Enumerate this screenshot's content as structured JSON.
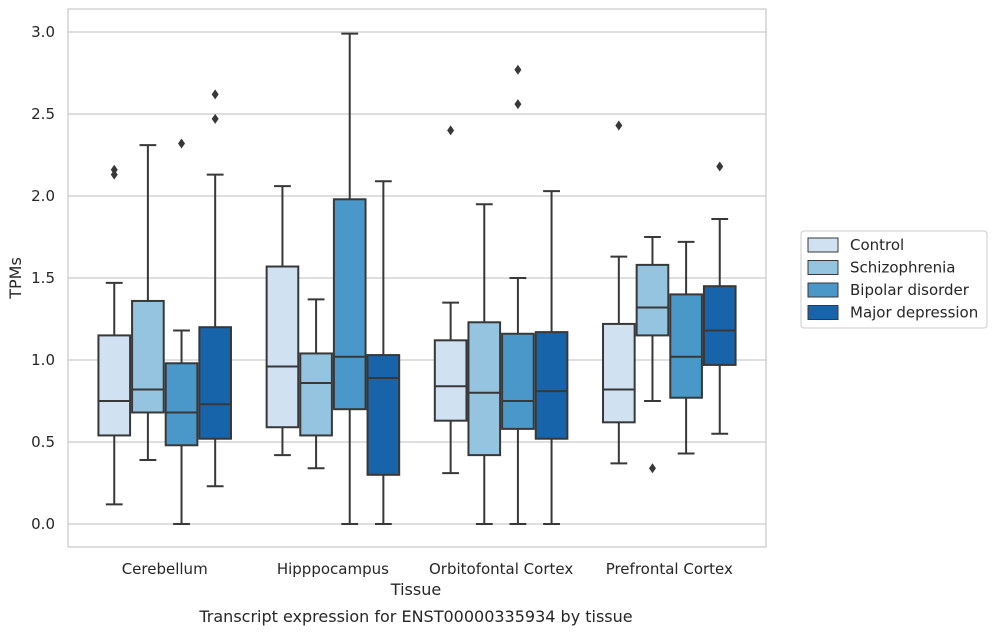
{
  "chart_data": {
    "type": "box",
    "title": "Transcript expression for ENST00000335934 by tissue",
    "xlabel": "Tissue",
    "ylabel": "TPMs",
    "ylim": [
      -0.14,
      3.14
    ],
    "yticks": [
      "0.0",
      "0.5",
      "1.0",
      "1.5",
      "2.0",
      "2.5",
      "3.0"
    ],
    "ytick_values": [
      0,
      0.5,
      1.0,
      1.5,
      2.0,
      2.5,
      3.0
    ],
    "grid": "horizontal",
    "legend_position": "right",
    "categories": [
      "Cerebellum",
      "Hipppocampus",
      "Orbitofontal Cortex",
      "Prefrontal Cortex"
    ],
    "series": [
      {
        "name": "Control",
        "color": "#d0e1f2",
        "boxes": [
          {
            "whislo": 0.12,
            "q1": 0.54,
            "med": 0.75,
            "q3": 1.15,
            "whishi": 1.47,
            "fliers": [
              2.13,
              2.16
            ]
          },
          {
            "whislo": 0.42,
            "q1": 0.59,
            "med": 0.96,
            "q3": 1.57,
            "whishi": 2.06,
            "fliers": []
          },
          {
            "whislo": 0.31,
            "q1": 0.63,
            "med": 0.84,
            "q3": 1.12,
            "whishi": 1.35,
            "fliers": [
              2.4
            ]
          },
          {
            "whislo": 0.37,
            "q1": 0.62,
            "med": 0.82,
            "q3": 1.22,
            "whishi": 1.63,
            "fliers": [
              2.43
            ]
          }
        ]
      },
      {
        "name": "Schizophrenia",
        "color": "#94c4df",
        "boxes": [
          {
            "whislo": 0.39,
            "q1": 0.68,
            "med": 0.82,
            "q3": 1.36,
            "whishi": 2.31,
            "fliers": []
          },
          {
            "whislo": 0.34,
            "q1": 0.54,
            "med": 0.86,
            "q3": 1.04,
            "whishi": 1.37,
            "fliers": []
          },
          {
            "whislo": 0.0,
            "q1": 0.42,
            "med": 0.8,
            "q3": 1.23,
            "whishi": 1.95,
            "fliers": []
          },
          {
            "whislo": 0.75,
            "q1": 1.15,
            "med": 1.32,
            "q3": 1.58,
            "whishi": 1.75,
            "fliers": [
              0.34
            ]
          }
        ]
      },
      {
        "name": "Bipolar disorder",
        "color": "#4a98c9",
        "boxes": [
          {
            "whislo": 0.0,
            "q1": 0.48,
            "med": 0.68,
            "q3": 0.98,
            "whishi": 1.18,
            "fliers": [
              2.32
            ]
          },
          {
            "whislo": 0.0,
            "q1": 0.7,
            "med": 1.02,
            "q3": 1.98,
            "whishi": 2.99,
            "fliers": []
          },
          {
            "whislo": 0.0,
            "q1": 0.58,
            "med": 0.75,
            "q3": 1.16,
            "whishi": 1.5,
            "fliers": [
              2.56,
              2.77
            ]
          },
          {
            "whislo": 0.43,
            "q1": 0.77,
            "med": 1.02,
            "q3": 1.4,
            "whishi": 1.72,
            "fliers": []
          }
        ]
      },
      {
        "name": "Major depression",
        "color": "#1764ab",
        "boxes": [
          {
            "whislo": 0.23,
            "q1": 0.52,
            "med": 0.73,
            "q3": 1.2,
            "whishi": 2.13,
            "fliers": [
              2.47,
              2.62
            ]
          },
          {
            "whislo": 0.0,
            "q1": 0.3,
            "med": 0.89,
            "q3": 1.03,
            "whishi": 2.09,
            "fliers": []
          },
          {
            "whislo": 0.0,
            "q1": 0.52,
            "med": 0.81,
            "q3": 1.17,
            "whishi": 2.03,
            "fliers": []
          },
          {
            "whislo": 0.55,
            "q1": 0.97,
            "med": 1.18,
            "q3": 1.45,
            "whishi": 1.86,
            "fliers": [
              2.18
            ]
          }
        ]
      }
    ]
  }
}
